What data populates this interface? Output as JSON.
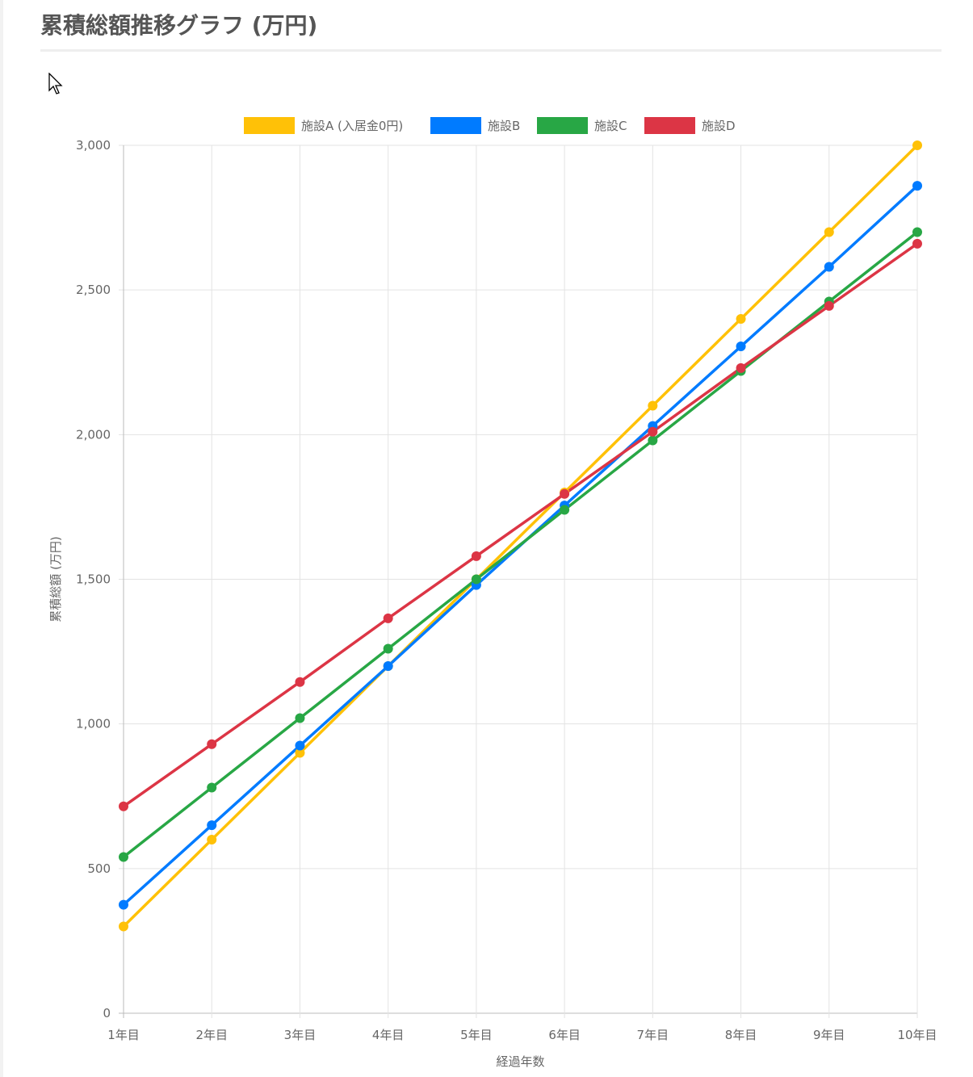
{
  "title": "累積総額推移グラフ (万円)",
  "chart_data": {
    "type": "line",
    "xlabel": "経過年数",
    "ylabel": "累積総額 (万円)",
    "categories": [
      "1年目",
      "2年目",
      "3年目",
      "4年目",
      "5年目",
      "6年目",
      "7年目",
      "8年目",
      "9年目",
      "10年目"
    ],
    "ylim": [
      0,
      3000
    ],
    "yticks": [
      0,
      500,
      1000,
      1500,
      2000,
      2500,
      3000
    ],
    "ytick_labels": [
      "0",
      "500",
      "1,000",
      "1,500",
      "2,000",
      "2,500",
      "3,000"
    ],
    "grid": true,
    "legend": "top",
    "series": [
      {
        "name": "施設A (入居金0円)",
        "color": "#ffc107",
        "values": [
          300,
          600,
          900,
          1200,
          1500,
          1800,
          2100,
          2400,
          2700,
          3000
        ]
      },
      {
        "name": "施設B",
        "color": "#007bff",
        "values": [
          375,
          650,
          925,
          1200,
          1480,
          1755,
          2030,
          2305,
          2580,
          2860
        ]
      },
      {
        "name": "施設C",
        "color": "#28a745",
        "values": [
          540,
          780,
          1020,
          1260,
          1500,
          1740,
          1980,
          2220,
          2460,
          2700
        ]
      },
      {
        "name": "施設D",
        "color": "#dc3545",
        "values": [
          715,
          930,
          1145,
          1365,
          1580,
          1795,
          2010,
          2230,
          2445,
          2660
        ]
      }
    ]
  }
}
